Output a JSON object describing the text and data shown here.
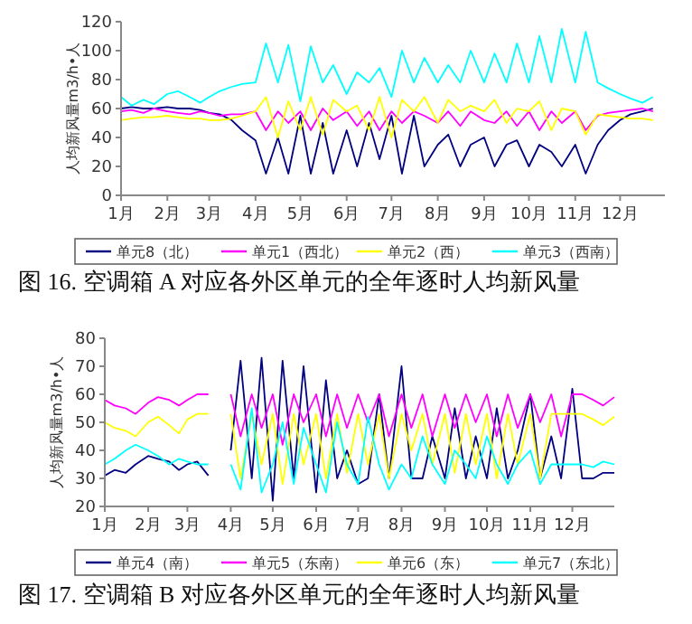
{
  "chart_data": [
    {
      "type": "line",
      "title": "图 16. 空调箱 A 对应各外区单元的全年逐时人均新风量",
      "ylabel": "人均新风量m3/h•人",
      "xlim": [
        "--01-01",
        "--12-31"
      ],
      "xticks": [
        {
          "value": "--01-01",
          "label": "1月"
        },
        {
          "value": "--02-01",
          "label": "2月"
        },
        {
          "value": "--03-01",
          "label": "3月"
        },
        {
          "value": "--04-01",
          "label": "4月"
        },
        {
          "value": "--05-01",
          "label": "5月"
        },
        {
          "value": "--06-01",
          "label": "6月"
        },
        {
          "value": "--07-01",
          "label": "7月"
        },
        {
          "value": "--08-01",
          "label": "8月"
        },
        {
          "value": "--09-01",
          "label": "9月"
        },
        {
          "value": "--10-01",
          "label": "10月"
        },
        {
          "value": "--11-01",
          "label": "11月"
        },
        {
          "value": "--12-01",
          "label": "12月"
        }
      ],
      "ylim": [
        0,
        120
      ],
      "yticks": [
        0,
        20,
        40,
        60,
        80,
        100,
        120
      ],
      "legend": "bottom",
      "grid": false,
      "x": [
        "--01-01",
        "--01-08",
        "--01-16",
        "--01-23",
        "--02-01",
        "--02-08",
        "--02-16",
        "--02-23",
        "--03-01",
        "--03-08",
        "--03-16",
        "--03-23",
        "--04-01",
        "--04-08",
        "--04-16",
        "--04-23",
        "--05-01",
        "--05-08",
        "--05-16",
        "--05-23",
        "--06-01",
        "--06-08",
        "--06-16",
        "--06-23",
        "--07-01",
        "--07-08",
        "--07-16",
        "--07-23",
        "--08-01",
        "--08-08",
        "--08-16",
        "--08-23",
        "--09-01",
        "--09-08",
        "--09-16",
        "--09-23",
        "--10-01",
        "--10-08",
        "--10-16",
        "--10-23",
        "--11-01",
        "--11-08",
        "--11-16",
        "--11-23",
        "--12-01",
        "--12-08",
        "--12-16",
        "--12-23"
      ],
      "series": [
        {
          "name": "单元8（北）",
          "color": "#000080",
          "values": [
            60,
            61,
            60,
            60,
            61,
            60,
            60,
            59,
            57,
            56,
            52,
            45,
            38,
            15,
            40,
            15,
            55,
            15,
            50,
            15,
            45,
            20,
            50,
            25,
            55,
            15,
            55,
            20,
            35,
            42,
            20,
            35,
            40,
            20,
            35,
            38,
            20,
            35,
            30,
            20,
            35,
            15,
            35,
            45,
            52,
            56,
            58,
            60
          ]
        },
        {
          "name": "单元1（西北）",
          "color": "#ff00ff",
          "values": [
            58,
            59,
            57,
            60,
            58,
            57,
            56,
            58,
            57,
            55,
            56,
            56,
            58,
            45,
            58,
            50,
            58,
            45,
            60,
            52,
            58,
            48,
            58,
            45,
            58,
            50,
            58,
            55,
            50,
            58,
            48,
            58,
            52,
            50,
            58,
            48,
            58,
            45,
            58,
            50,
            58,
            45,
            55,
            57,
            58,
            59,
            60,
            58
          ]
        },
        {
          "name": "单元2（西）",
          "color": "#ffff00",
          "values": [
            52,
            53,
            54,
            54,
            55,
            54,
            53,
            53,
            52,
            52,
            53,
            55,
            58,
            68,
            40,
            65,
            45,
            68,
            42,
            66,
            58,
            62,
            45,
            68,
            40,
            66,
            58,
            68,
            50,
            66,
            58,
            62,
            58,
            66,
            50,
            60,
            58,
            65,
            45,
            60,
            58,
            42,
            56,
            55,
            54,
            53,
            53,
            52
          ]
        },
        {
          "name": "单元3（西南）",
          "color": "#00ffff",
          "values": [
            68,
            62,
            66,
            63,
            70,
            72,
            68,
            64,
            68,
            72,
            75,
            77,
            78,
            105,
            78,
            104,
            65,
            103,
            78,
            90,
            70,
            85,
            78,
            88,
            68,
            100,
            78,
            95,
            78,
            90,
            78,
            100,
            78,
            98,
            78,
            105,
            78,
            110,
            78,
            115,
            78,
            113,
            78,
            74,
            70,
            67,
            64,
            68
          ]
        }
      ]
    },
    {
      "type": "line",
      "title": "图 17. 空调箱 B 对应各外区单元的全年逐时人均新风量",
      "ylabel": "人均新风量m3/h•人",
      "xlim": [
        "--01-01",
        "--12-31"
      ],
      "xticks": [
        {
          "value": "--01-01",
          "label": "1月"
        },
        {
          "value": "--02-01",
          "label": "2月"
        },
        {
          "value": "--03-01",
          "label": "3月"
        },
        {
          "value": "--04-01",
          "label": "4月"
        },
        {
          "value": "--05-01",
          "label": "5月"
        },
        {
          "value": "--06-01",
          "label": "6月"
        },
        {
          "value": "--07-01",
          "label": "7月"
        },
        {
          "value": "--08-01",
          "label": "8月"
        },
        {
          "value": "--09-01",
          "label": "9月"
        },
        {
          "value": "--10-01",
          "label": "10月"
        },
        {
          "value": "--11-01",
          "label": "11月"
        },
        {
          "value": "--12-01",
          "label": "12月"
        }
      ],
      "ylim": [
        20,
        80
      ],
      "yticks": [
        20,
        30,
        40,
        50,
        60,
        70,
        80
      ],
      "legend": "bottom",
      "grid": false,
      "x": [
        "--01-01",
        "--01-08",
        "--01-16",
        "--01-23",
        "--02-01",
        "--02-08",
        "--02-16",
        "--02-23",
        "--03-01",
        "--03-08",
        "--03-16",
        "--03-23",
        "--04-01",
        "--04-08",
        "--04-16",
        "--04-23",
        "--05-01",
        "--05-08",
        "--05-16",
        "--05-23",
        "--06-01",
        "--06-08",
        "--06-16",
        "--06-23",
        "--07-01",
        "--07-08",
        "--07-16",
        "--07-23",
        "--08-01",
        "--08-08",
        "--08-16",
        "--08-23",
        "--09-01",
        "--09-08",
        "--09-16",
        "--09-23",
        "--10-01",
        "--10-08",
        "--10-16",
        "--10-23",
        "--11-01",
        "--11-08",
        "--11-16",
        "--11-23",
        "--12-01",
        "--12-08",
        "--12-16",
        "--12-23",
        "--12-31"
      ],
      "series": [
        {
          "name": "单元4（南）",
          "color": "#000080",
          "values": [
            31,
            33,
            32,
            35,
            38,
            37,
            36,
            33,
            35,
            36,
            31,
            null,
            40,
            72,
            30,
            73,
            22,
            72,
            30,
            70,
            25,
            65,
            30,
            40,
            28,
            30,
            60,
            30,
            70,
            30,
            30,
            45,
            30,
            55,
            30,
            45,
            30,
            55,
            30,
            40,
            60,
            30,
            45,
            30,
            62,
            30,
            30,
            32,
            32
          ]
        },
        {
          "name": "单元5（东南）",
          "color": "#ff00ff",
          "values": [
            58,
            56,
            55,
            53,
            57,
            59,
            58,
            56,
            58,
            60,
            60,
            null,
            60,
            45,
            60,
            48,
            60,
            42,
            60,
            50,
            60,
            45,
            60,
            48,
            60,
            50,
            60,
            45,
            60,
            48,
            60,
            45,
            60,
            48,
            60,
            50,
            60,
            45,
            60,
            48,
            60,
            50,
            60,
            45,
            60,
            60,
            58,
            56,
            59
          ]
        },
        {
          "name": "单元6（东）",
          "color": "#ffff00",
          "values": [
            50,
            48,
            47,
            45,
            50,
            52,
            49,
            46,
            51,
            53,
            53,
            null,
            53,
            30,
            53,
            35,
            53,
            28,
            53,
            35,
            53,
            30,
            53,
            32,
            53,
            35,
            53,
            30,
            53,
            40,
            53,
            35,
            53,
            32,
            53,
            35,
            53,
            30,
            53,
            35,
            53,
            30,
            53,
            53,
            53,
            53,
            51,
            49,
            52
          ]
        },
        {
          "name": "单元7（东北）",
          "color": "#00ffff",
          "values": [
            35,
            37,
            40,
            42,
            40,
            38,
            35,
            37,
            36,
            35,
            35,
            null,
            35,
            26,
            55,
            25,
            35,
            50,
            28,
            48,
            35,
            25,
            50,
            35,
            28,
            52,
            35,
            26,
            35,
            30,
            45,
            35,
            28,
            40,
            35,
            30,
            45,
            35,
            28,
            35,
            40,
            28,
            35,
            35,
            35,
            35,
            34,
            36,
            35
          ]
        }
      ]
    }
  ]
}
